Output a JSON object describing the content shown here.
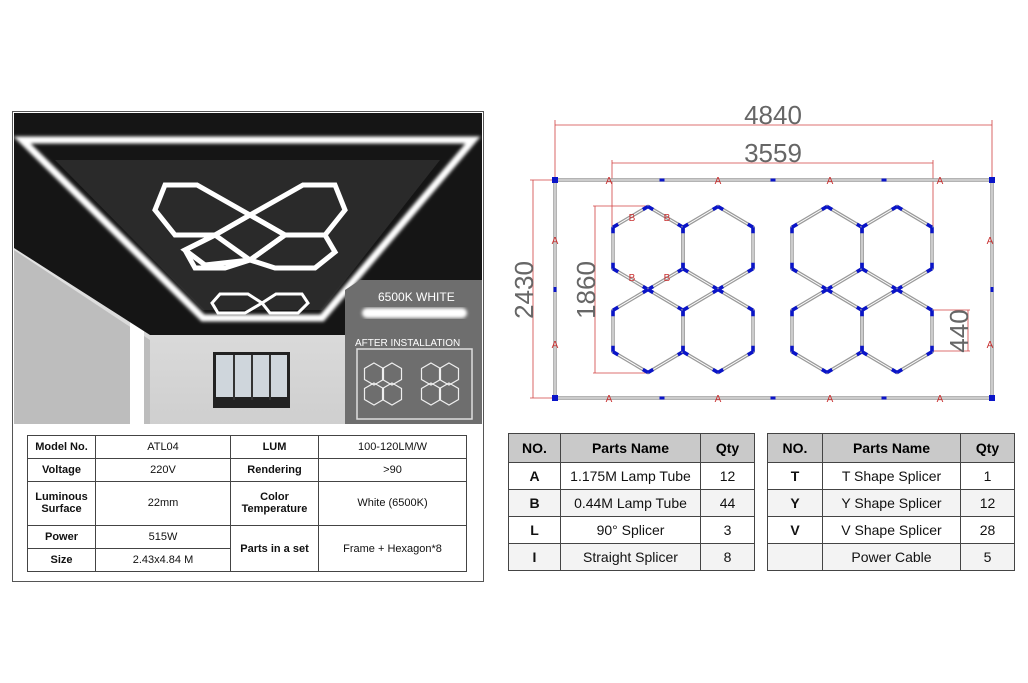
{
  "photo": {
    "badge_color": "6500K WHITE",
    "badge_install": "AFTER INSTALLATION"
  },
  "spec_table": {
    "rows": [
      {
        "k1": "Model No.",
        "v1": "ATL04",
        "k2": "LUM",
        "v2": "100-120LM/W"
      },
      {
        "k1": "Voltage",
        "v1": "220V",
        "k2": "Rendering",
        "v2": ">90"
      },
      {
        "k1": "Luminous Surface",
        "v1": "22mm",
        "k2": "Color Temperature",
        "v2": "White (6500K)"
      },
      {
        "k1": "Power",
        "v1": "515W",
        "k2": "Parts in a set",
        "v2": "Frame + Hexagon*8"
      },
      {
        "k1": "Size",
        "v1": "2.43x4.84 M"
      }
    ]
  },
  "diagram": {
    "dim_width": "4840",
    "dim_inner_width": "3559",
    "dim_height": "2430",
    "dim_inner_height": "1860",
    "dim_segment": "440",
    "label_a": "A",
    "label_b": "B",
    "colors": {
      "dimension": "#d04040",
      "connector": "#0a14c8",
      "tube": "#9a9a9a"
    }
  },
  "parts_table_1": {
    "headers": [
      "NO.",
      "Parts Name",
      "Qty"
    ],
    "rows": [
      [
        "A",
        "1.175M Lamp Tube",
        "12"
      ],
      [
        "B",
        "0.44M Lamp Tube",
        "44"
      ],
      [
        "L",
        "90° Splicer",
        "3"
      ],
      [
        "I",
        "Straight Splicer",
        "8"
      ]
    ]
  },
  "parts_table_2": {
    "headers": [
      "NO.",
      "Parts Name",
      "Qty"
    ],
    "rows": [
      [
        "T",
        "T Shape Splicer",
        "1"
      ],
      [
        "Y",
        "Y Shape Splicer",
        "12"
      ],
      [
        "V",
        "V Shape Splicer",
        "28"
      ],
      [
        "",
        "Power Cable",
        "5"
      ]
    ]
  }
}
